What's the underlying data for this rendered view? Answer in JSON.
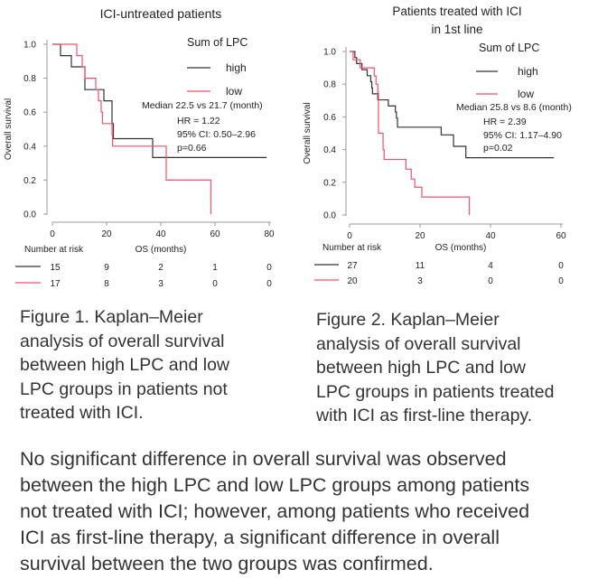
{
  "chart_data": [
    {
      "type": "line",
      "title": "ICI-untreated patients",
      "xlabel": "OS (months)",
      "ylabel": "Overall survival",
      "xlim": [
        0,
        80
      ],
      "ylim": [
        0,
        1.0
      ],
      "xticks": [
        "0",
        "20",
        "40",
        "60",
        "80"
      ],
      "yticks": [
        "0.0",
        "0.2",
        "0.4",
        "0.6",
        "0.8",
        "1.0"
      ],
      "legend_title": "Sum of LPC",
      "legend_placement": "top-right",
      "stats": [
        "Median 22.5 vs 21.7 (month)",
        "HR = 1.22",
        "95% CI: 0.50–2.96",
        "p=0.66"
      ],
      "series": [
        {
          "name": "high",
          "color": "#333333",
          "x": [
            0,
            3,
            7,
            12,
            19,
            22,
            22.5,
            37,
            79
          ],
          "y": [
            1.0,
            0.933,
            0.867,
            0.733,
            0.667,
            0.533,
            0.444,
            0.333,
            0.333
          ]
        },
        {
          "name": "low",
          "color": "#f0506e",
          "x": [
            0,
            9,
            11,
            12,
            16,
            17,
            18,
            18.5,
            22,
            22.2,
            42,
            58.5,
            58.5
          ],
          "y": [
            1.0,
            0.933,
            0.867,
            0.8,
            0.733,
            0.667,
            0.6,
            0.533,
            0.467,
            0.4,
            0.2,
            0.2,
            0.0
          ]
        }
      ],
      "risk_table": {
        "label": "Number at risk",
        "rows": [
          {
            "name": "high",
            "values": [
              "15",
              "9",
              "2",
              "1",
              "0"
            ]
          },
          {
            "name": "low",
            "values": [
              "17",
              "8",
              "3",
              "0",
              "0"
            ]
          }
        ]
      }
    },
    {
      "type": "line",
      "title": "Patients treated with ICI",
      "title_line2": "in 1st line",
      "xlabel": "OS (months)",
      "ylabel": "Overall survival",
      "xlim": [
        0,
        60
      ],
      "ylim": [
        0,
        1.0
      ],
      "xticks": [
        "0",
        "20",
        "40",
        "60"
      ],
      "yticks": [
        "0.0",
        "0.2",
        "0.4",
        "0.6",
        "0.8",
        "1.0"
      ],
      "legend_title": "Sum of LPC",
      "legend_placement": "top-right",
      "stats": [
        "Median 25.8 vs 8.6 (month)",
        "HR = 2.39",
        "95% CI: 1.17–4.90",
        "p=0.02"
      ],
      "series": [
        {
          "name": "high",
          "color": "#333333",
          "x": [
            0,
            1.5,
            2,
            3.5,
            5,
            6,
            6.3,
            6.5,
            8,
            11,
            13,
            13.3,
            13.6,
            26,
            29.5,
            33,
            58
          ],
          "y": [
            1.0,
            0.963,
            0.926,
            0.889,
            0.852,
            0.815,
            0.778,
            0.741,
            0.704,
            0.667,
            0.63,
            0.593,
            0.537,
            0.49,
            0.42,
            0.35,
            0.35
          ]
        },
        {
          "name": "low",
          "color": "#f0506e",
          "x": [
            0,
            1,
            3,
            7,
            7.5,
            8,
            8.2,
            9.5,
            9.8,
            16,
            17.5,
            18.5,
            20.5,
            34,
            34
          ],
          "y": [
            1.0,
            0.95,
            0.9,
            0.85,
            0.8,
            0.75,
            0.5,
            0.4,
            0.34,
            0.28,
            0.22,
            0.17,
            0.11,
            0.11,
            0.0
          ]
        }
      ],
      "risk_table": {
        "label": "Number at risk",
        "rows": [
          {
            "name": "high",
            "values": [
              "27",
              "11",
              "4",
              "0"
            ]
          },
          {
            "name": "low",
            "values": [
              "20",
              "3",
              "0",
              "0"
            ]
          }
        ]
      }
    }
  ],
  "captions": {
    "fig1": [
      "Figure 1. Kaplan–Meier",
      "analysis of overall survival",
      "between high LPC and low",
      "LPC groups in patients not",
      "treated with ICI."
    ],
    "fig2": [
      "Figure 2. Kaplan–Meier",
      "analysis of overall survival",
      "between high LPC and low",
      "LPC groups in patients treated",
      "with ICI as first-line therapy."
    ]
  },
  "paragraph": [
    "No significant difference in overall survival was observed",
    "between the high LPC and low LPC groups among patients",
    "not treated with ICI; however, among patients who received",
    "ICI as first-line therapy, a significant difference in overall",
    "survival between the two groups was confirmed."
  ]
}
